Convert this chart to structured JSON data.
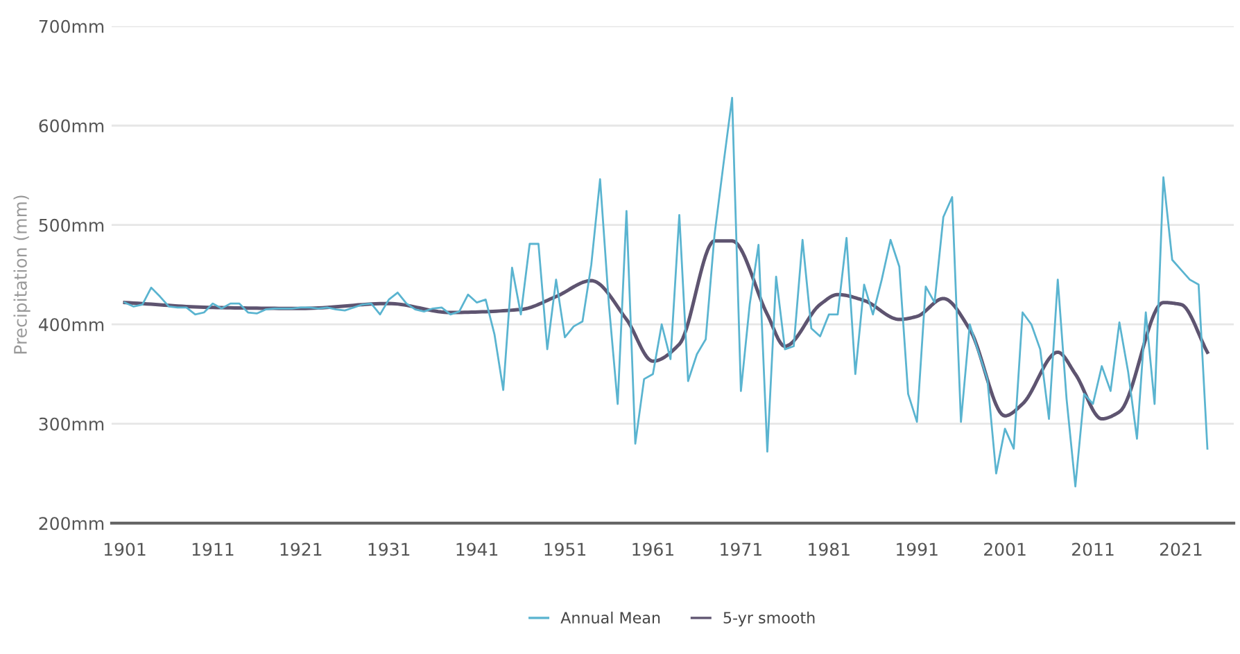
{
  "chart_data": {
    "type": "line",
    "ylabel": "Precipitation (mm)",
    "xlim": [
      1899.5,
      2027
    ],
    "ylim": [
      200,
      700
    ],
    "xticks": [
      1901,
      1911,
      1921,
      1931,
      1941,
      1951,
      1961,
      1971,
      1981,
      1991,
      2001,
      2011,
      2021
    ],
    "yticks": [
      {
        "value": 200,
        "label": "200mm"
      },
      {
        "value": 300,
        "label": "300mm"
      },
      {
        "value": 400,
        "label": "400mm"
      },
      {
        "value": 500,
        "label": "500mm"
      },
      {
        "value": 600,
        "label": "600mm"
      },
      {
        "value": 700,
        "label": "700mm"
      }
    ],
    "grid": "y",
    "legend": "bottom",
    "marker": "none",
    "line_style": "solid",
    "series": [
      {
        "name": "Annual Mean",
        "color": "#5ab4d0",
        "x": [
          1901,
          1902,
          1903,
          1904,
          1905,
          1906,
          1907,
          1908,
          1909,
          1910,
          1911,
          1912,
          1913,
          1914,
          1915,
          1916,
          1917,
          1918,
          1919,
          1920,
          1921,
          1922,
          1923,
          1924,
          1925,
          1926,
          1927,
          1928,
          1929,
          1930,
          1931,
          1932,
          1933,
          1934,
          1935,
          1936,
          1937,
          1938,
          1939,
          1940,
          1941,
          1942,
          1943,
          1944,
          1945,
          1946,
          1947,
          1948,
          1949,
          1950,
          1951,
          1952,
          1953,
          1954,
          1955,
          1956,
          1957,
          1958,
          1959,
          1960,
          1961,
          1962,
          1963,
          1964,
          1965,
          1966,
          1967,
          1968,
          1969,
          1970,
          1971,
          1972,
          1973,
          1974,
          1975,
          1976,
          1977,
          1978,
          1979,
          1980,
          1981,
          1982,
          1983,
          1984,
          1985,
          1986,
          1987,
          1988,
          1989,
          1990,
          1991,
          1992,
          1993,
          1994,
          1995,
          1996,
          1997,
          1998,
          1999,
          2000,
          2001,
          2002,
          2003,
          2004,
          2005,
          2006,
          2007,
          2008,
          2009,
          2010,
          2011,
          2012,
          2013,
          2014,
          2015,
          2016,
          2017,
          2018,
          2019,
          2020,
          2021,
          2022,
          2023,
          2024
        ],
        "values": [
          422,
          418,
          420,
          437,
          428,
          418,
          417,
          417,
          410,
          412,
          421,
          416,
          421,
          421,
          412,
          411,
          415,
          416,
          416,
          416,
          417,
          417,
          416,
          417,
          415,
          414,
          417,
          420,
          421,
          410,
          425,
          432,
          421,
          415,
          413,
          416,
          417,
          410,
          413,
          430,
          422,
          425,
          390,
          334,
          457,
          410,
          481,
          481,
          375,
          445,
          387,
          398,
          403,
          460,
          546,
          420,
          320,
          514,
          280,
          345,
          350,
          400,
          365,
          510,
          343,
          370,
          385,
          490,
          560,
          628,
          333,
          420,
          480,
          272,
          448,
          375,
          378,
          485,
          396,
          388,
          410,
          410,
          487,
          350,
          440,
          410,
          445,
          485,
          458,
          330,
          302,
          438,
          422,
          508,
          528,
          302,
          400,
          372,
          345,
          250,
          295,
          275,
          412,
          400,
          375,
          305,
          445,
          325,
          237,
          330,
          320,
          358,
          333,
          402,
          352,
          285,
          412,
          320,
          548,
          465,
          455,
          445,
          440,
          275
        ]
      },
      {
        "name": "5-yr smooth",
        "color": "#5e5470",
        "x": [
          1901,
          1911,
          1921,
          1931,
          1938,
          1946,
          1950,
          1954,
          1958,
          1961,
          1964,
          1968,
          1970,
          1974,
          1976,
          1980,
          1982,
          1985,
          1989,
          1991,
          1994,
          1997,
          2001,
          2003,
          2007,
          2009,
          2012,
          2014,
          2019,
          2021,
          2024
        ],
        "values": [
          422,
          417,
          416,
          421,
          412,
          415,
          428,
          444,
          405,
          363,
          380,
          484,
          484,
          410,
          378,
          420,
          430,
          424,
          405,
          408,
          426,
          395,
          308,
          320,
          372,
          350,
          305,
          312,
          422,
          420,
          372
        ]
      }
    ]
  }
}
